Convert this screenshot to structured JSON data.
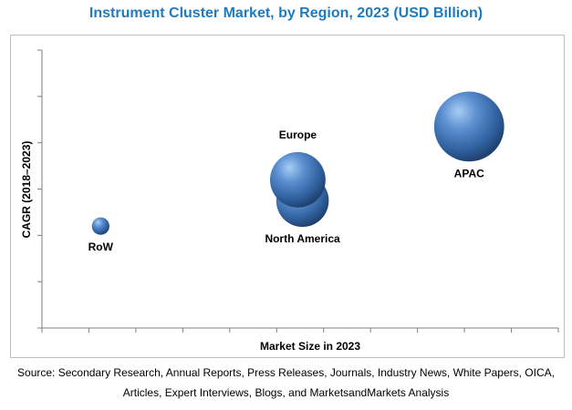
{
  "chart_data": {
    "type": "scatter",
    "subtype": "bubble",
    "title": "Instrument Cluster Market, by Region, 2023 (USD Billion)",
    "xlabel": "Market Size in 2023",
    "ylabel": "CAGR (2018–2023)",
    "x_tick_count": 11,
    "y_tick_count": 6,
    "xlim": [
      0,
      11
    ],
    "ylim": [
      0,
      6
    ],
    "grid": false,
    "legend": "none",
    "bubble_color": "#3f73b5",
    "points": [
      {
        "label": "RoW",
        "x": 1.25,
        "y": 2.2,
        "size": 0.6
      },
      {
        "label": "North America",
        "x": 5.55,
        "y": 2.75,
        "size": 1.8
      },
      {
        "label": "Europe",
        "x": 5.45,
        "y": 3.2,
        "size": 1.9
      },
      {
        "label": "APAC",
        "x": 9.1,
        "y": 4.35,
        "size": 2.4
      }
    ]
  },
  "source": {
    "line1": "Source: Secondary Research, Annual Reports, Press Releases, Journals, Industry News, White Papers, OICA,",
    "line2": "Articles, Expert Interviews, Blogs, and MarketsandMarkets Analysis"
  }
}
